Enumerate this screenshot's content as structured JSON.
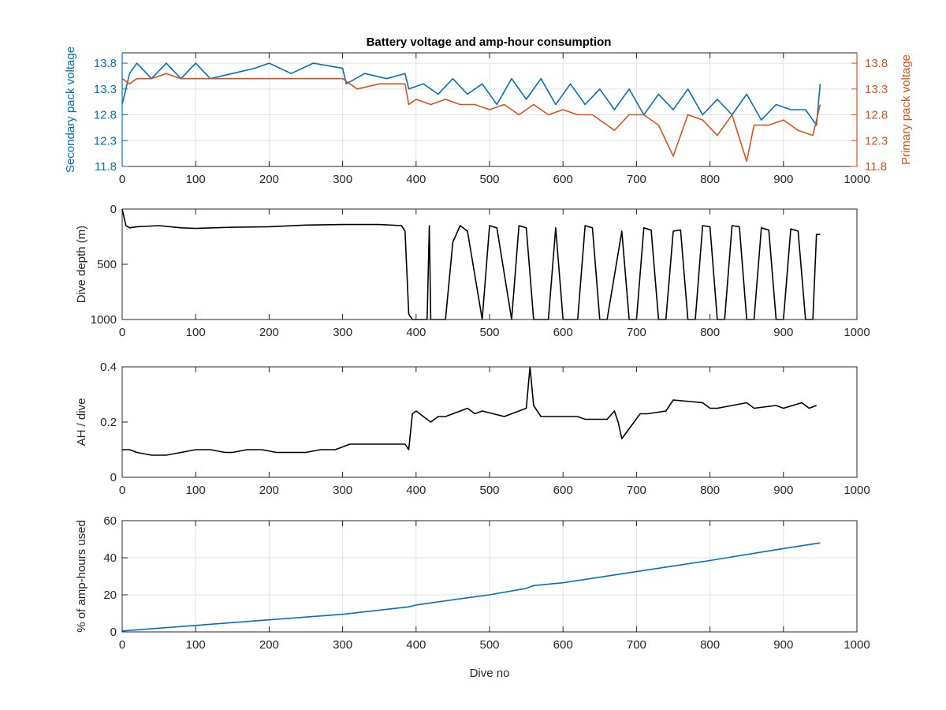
{
  "chart_data": [
    {
      "type": "line",
      "title": "Battery voltage and amp-hour consumption",
      "xlabel": "",
      "ylabel_left": "Secondary pack voltage",
      "ylabel_right": "Primary pack voltage",
      "xlim": [
        0,
        1000
      ],
      "ylim": [
        11.8,
        14.0
      ],
      "yticks": [
        11.8,
        12.3,
        12.8,
        13.3,
        13.8
      ],
      "xticks": [
        0,
        100,
        200,
        300,
        400,
        500,
        600,
        700,
        800,
        900,
        1000
      ],
      "grid": true,
      "series": [
        {
          "name": "Secondary pack voltage",
          "axis": "left",
          "color": "#0072BD",
          "x": [
            0,
            10,
            20,
            40,
            60,
            80,
            100,
            120,
            150,
            180,
            200,
            230,
            260,
            300,
            305,
            330,
            360,
            385,
            390,
            410,
            430,
            450,
            470,
            490,
            510,
            530,
            550,
            570,
            590,
            610,
            630,
            650,
            670,
            690,
            710,
            730,
            750,
            770,
            790,
            810,
            830,
            850,
            870,
            890,
            910,
            930,
            945,
            950
          ],
          "values": [
            13.0,
            13.6,
            13.8,
            13.5,
            13.8,
            13.5,
            13.8,
            13.5,
            13.6,
            13.7,
            13.8,
            13.6,
            13.8,
            13.7,
            13.4,
            13.6,
            13.5,
            13.6,
            13.3,
            13.4,
            13.2,
            13.5,
            13.2,
            13.4,
            13.0,
            13.5,
            13.1,
            13.5,
            13.0,
            13.4,
            13.0,
            13.3,
            12.9,
            13.3,
            12.8,
            13.2,
            12.9,
            13.3,
            12.8,
            13.1,
            12.8,
            13.2,
            12.7,
            13.0,
            12.9,
            12.9,
            12.6,
            13.4
          ]
        },
        {
          "name": "Primary pack voltage",
          "axis": "right",
          "color": "#D95319",
          "x": [
            0,
            10,
            20,
            40,
            60,
            80,
            100,
            150,
            200,
            250,
            300,
            320,
            350,
            385,
            390,
            400,
            420,
            440,
            460,
            480,
            500,
            520,
            540,
            560,
            580,
            600,
            620,
            640,
            660,
            670,
            690,
            710,
            730,
            750,
            770,
            790,
            810,
            830,
            850,
            860,
            880,
            900,
            920,
            940,
            950
          ],
          "values": [
            13.5,
            13.4,
            13.5,
            13.5,
            13.6,
            13.5,
            13.5,
            13.5,
            13.5,
            13.5,
            13.5,
            13.3,
            13.4,
            13.4,
            13.0,
            13.1,
            13.0,
            13.1,
            13.0,
            13.0,
            12.9,
            13.0,
            12.8,
            13.0,
            12.8,
            12.9,
            12.8,
            12.8,
            12.6,
            12.5,
            12.8,
            12.8,
            12.6,
            12.0,
            12.8,
            12.7,
            12.4,
            12.8,
            11.9,
            12.6,
            12.6,
            12.7,
            12.5,
            12.4,
            13.0
          ]
        }
      ]
    },
    {
      "type": "line",
      "title": "",
      "xlabel": "",
      "ylabel": "Dive depth (m)",
      "xlim": [
        0,
        1000
      ],
      "ylim": [
        0,
        1000
      ],
      "y_reversed": true,
      "yticks": [
        0,
        500,
        1000
      ],
      "xticks": [
        0,
        100,
        200,
        300,
        400,
        500,
        600,
        700,
        800,
        900,
        1000
      ],
      "grid": false,
      "series": [
        {
          "color": "#000000",
          "x": [
            0,
            5,
            10,
            20,
            50,
            80,
            100,
            150,
            200,
            250,
            300,
            350,
            380,
            385,
            390,
            395,
            400,
            415,
            418,
            420,
            440,
            450,
            460,
            470,
            490,
            500,
            510,
            530,
            540,
            550,
            560,
            580,
            590,
            600,
            620,
            630,
            640,
            650,
            660,
            680,
            690,
            700,
            710,
            720,
            730,
            740,
            750,
            760,
            770,
            780,
            790,
            800,
            810,
            820,
            830,
            840,
            850,
            860,
            870,
            880,
            890,
            900,
            910,
            920,
            930,
            940,
            945,
            950
          ],
          "values": [
            0,
            150,
            170,
            160,
            150,
            170,
            175,
            165,
            160,
            145,
            140,
            140,
            150,
            200,
            950,
            1000,
            1000,
            1000,
            150,
            1000,
            1000,
            300,
            150,
            200,
            1000,
            150,
            170,
            1000,
            150,
            170,
            1000,
            1000,
            170,
            1000,
            1000,
            150,
            170,
            1000,
            1000,
            200,
            1000,
            1000,
            170,
            190,
            1000,
            1000,
            200,
            190,
            1000,
            1000,
            150,
            160,
            1000,
            1000,
            150,
            160,
            1000,
            1000,
            170,
            190,
            1000,
            1000,
            180,
            200,
            1000,
            1000,
            230,
            230
          ]
        }
      ]
    },
    {
      "type": "line",
      "title": "",
      "xlabel": "",
      "ylabel": "AH / dive",
      "xlim": [
        0,
        1000
      ],
      "ylim": [
        0,
        0.4
      ],
      "yticks": [
        0,
        0.2,
        0.4
      ],
      "xticks": [
        0,
        100,
        200,
        300,
        400,
        500,
        600,
        700,
        800,
        900,
        1000
      ],
      "grid": false,
      "series": [
        {
          "color": "#000000",
          "x": [
            0,
            10,
            20,
            40,
            60,
            80,
            100,
            120,
            140,
            150,
            170,
            190,
            210,
            230,
            250,
            270,
            290,
            300,
            310,
            330,
            350,
            370,
            385,
            390,
            395,
            400,
            410,
            420,
            430,
            440,
            470,
            480,
            490,
            520,
            530,
            550,
            555,
            560,
            570,
            610,
            620,
            630,
            660,
            670,
            675,
            680,
            705,
            715,
            740,
            750,
            790,
            800,
            810,
            850,
            860,
            890,
            900,
            925,
            935,
            945
          ],
          "values": [
            0.1,
            0.1,
            0.09,
            0.08,
            0.08,
            0.09,
            0.1,
            0.1,
            0.09,
            0.09,
            0.1,
            0.1,
            0.09,
            0.09,
            0.09,
            0.1,
            0.1,
            0.11,
            0.12,
            0.12,
            0.12,
            0.12,
            0.12,
            0.1,
            0.23,
            0.24,
            0.22,
            0.2,
            0.22,
            0.22,
            0.25,
            0.23,
            0.24,
            0.22,
            0.23,
            0.25,
            0.4,
            0.26,
            0.22,
            0.22,
            0.22,
            0.21,
            0.21,
            0.24,
            0.2,
            0.14,
            0.23,
            0.23,
            0.24,
            0.28,
            0.27,
            0.25,
            0.25,
            0.27,
            0.25,
            0.26,
            0.25,
            0.27,
            0.25,
            0.26
          ]
        }
      ]
    },
    {
      "type": "line",
      "title": "",
      "xlabel": "Dive no",
      "ylabel": "% of amp-hours used",
      "xlim": [
        0,
        1000
      ],
      "ylim": [
        0,
        60
      ],
      "yticks": [
        0,
        20,
        40,
        60
      ],
      "xticks": [
        0,
        100,
        200,
        300,
        400,
        500,
        600,
        700,
        800,
        900,
        1000
      ],
      "grid": true,
      "series": [
        {
          "color": "#0072BD",
          "x": [
            0,
            100,
            200,
            300,
            390,
            400,
            480,
            500,
            550,
            560,
            600,
            700,
            800,
            900,
            950
          ],
          "values": [
            0.5,
            3.5,
            6.5,
            9.5,
            13.5,
            14.5,
            19,
            20,
            23.5,
            25,
            26.5,
            32.5,
            38.5,
            45,
            48
          ]
        }
      ]
    }
  ]
}
